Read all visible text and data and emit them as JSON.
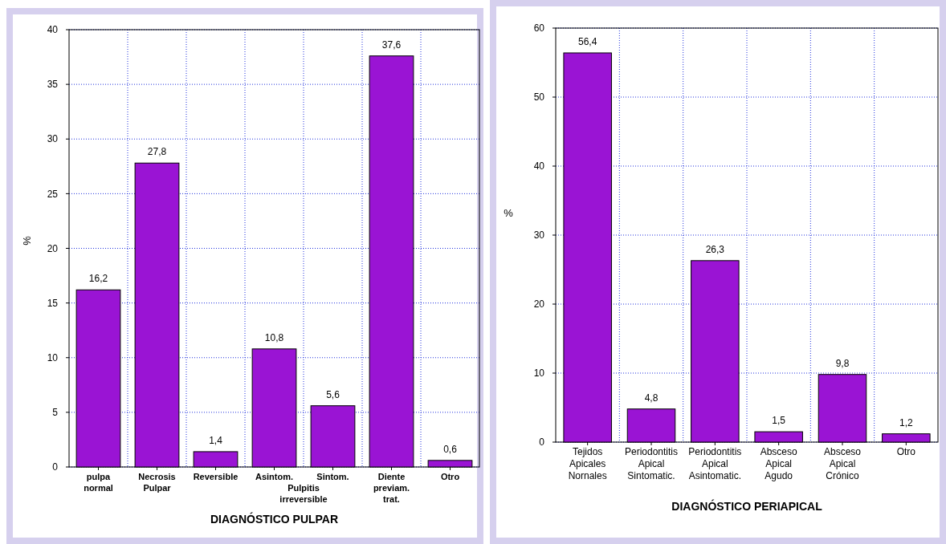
{
  "chart_data": [
    {
      "type": "bar",
      "xlabel": "DIAGNÓSTICO PULPAR",
      "ylabel": "%",
      "categories": [
        "pulpa normal",
        "Necrosis Pulpar",
        "Reversible",
        "Asintom.",
        "Sintom.",
        "Diente previam. trat.",
        "Otro"
      ],
      "values": [
        16.2,
        27.8,
        1.4,
        10.8,
        5.6,
        37.6,
        0.6
      ],
      "value_labels": [
        "16,2",
        "27,8",
        "1,4",
        "10,8",
        "5,6",
        "37,6",
        "0,6"
      ],
      "color": "#9a14d4",
      "ylim": [
        0,
        40
      ],
      "yticks": [
        0,
        5,
        10,
        15,
        20,
        25,
        30,
        35,
        40
      ],
      "grid": true,
      "annotations": [
        "Pulpitis irreversible"
      ]
    },
    {
      "type": "bar",
      "xlabel": "DIAGNÓSTICO PERIAPICAL",
      "ylabel": "%",
      "categories": [
        "Tejidos Apicales Nornales",
        "Periodontitis Apical Sintomatic.",
        "Periodontitis Apical Asintomatic.",
        "Absceso Apical Agudo",
        "Absceso Apical Crónico",
        "Otro"
      ],
      "values": [
        56.4,
        4.8,
        26.3,
        1.5,
        9.8,
        1.2
      ],
      "value_labels": [
        "56,4",
        "4,8",
        "26,3",
        "1,5",
        "9,8",
        "1,2"
      ],
      "color": "#9a14d4",
      "ylim": [
        0,
        60
      ],
      "yticks": [
        0,
        10,
        20,
        30,
        40,
        50,
        60
      ],
      "grid": true
    }
  ]
}
